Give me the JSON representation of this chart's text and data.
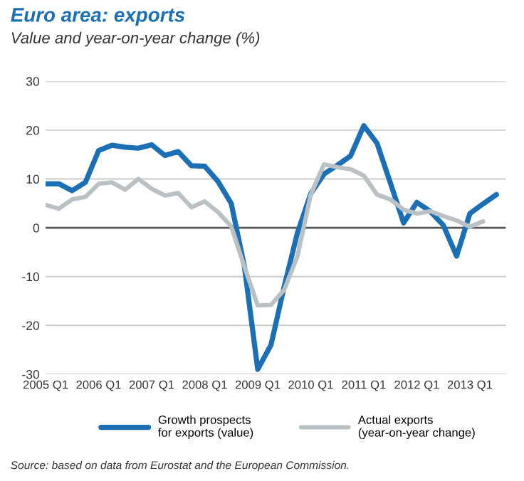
{
  "chart_data": {
    "type": "line",
    "title": "Euro area: exports",
    "subtitle": "Value and year-on-year change (%)",
    "categories": [
      "2005 Q1",
      null,
      null,
      null,
      "2006 Q1",
      null,
      null,
      null,
      "2007 Q1",
      null,
      null,
      null,
      "2008 Q1",
      null,
      null,
      null,
      "2009 Q1",
      null,
      null,
      null,
      "2010 Q1",
      null,
      null,
      null,
      "2011 Q1",
      null,
      null,
      null,
      "2012 Q1",
      null,
      null,
      null,
      "2013 Q1",
      null,
      null
    ],
    "series": [
      {
        "name": "Growth prospects\nfor exports (value)",
        "color": "#1a6fb5",
        "values": [
          9,
          9,
          7.6,
          9.3,
          15.8,
          16.9,
          16.5,
          16.3,
          17,
          14.8,
          15.6,
          12.7,
          12.6,
          9.5,
          5,
          -8,
          -29,
          -24,
          -12,
          -1,
          7,
          11,
          12.8,
          14.7,
          20.9,
          17.3,
          9.2,
          1,
          5.2,
          3.4,
          0.5,
          -5.8,
          2.9,
          4.9,
          6.8
        ]
      },
      {
        "name": "Actual exports\n(year-on-year change)",
        "color": "#b9c1c5",
        "values": [
          4.7,
          3.9,
          5.8,
          6.3,
          9,
          9.3,
          7.8,
          10,
          8,
          6.6,
          7.1,
          4.2,
          5.4,
          3.2,
          0.3,
          -8,
          -15.9,
          -15.8,
          -12.7,
          -5.8,
          6.8,
          13,
          12.4,
          12,
          10.7,
          6.8,
          5.8,
          3.7,
          2.9,
          3.4,
          2.4,
          1.5,
          0.2,
          1.3,
          null
        ]
      }
    ],
    "ylim": [
      -30,
      30
    ],
    "yticks": [
      -30,
      -20,
      -10,
      0,
      10,
      20,
      30
    ],
    "ref_lines": [
      {
        "axis": "y",
        "value": 0,
        "color": "#555555"
      }
    ],
    "grid": "y",
    "legend": "bottom",
    "marker": "none",
    "line_style": "solid",
    "annotations": [
      "Source: based on data from Eurostat and the European Commission."
    ]
  }
}
